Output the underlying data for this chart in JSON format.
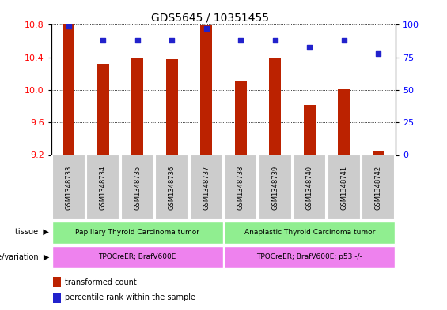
{
  "title": "GDS5645 / 10351455",
  "samples": [
    "GSM1348733",
    "GSM1348734",
    "GSM1348735",
    "GSM1348736",
    "GSM1348737",
    "GSM1348738",
    "GSM1348739",
    "GSM1348740",
    "GSM1348741",
    "GSM1348742"
  ],
  "transformed_count": [
    10.8,
    10.32,
    10.39,
    10.38,
    10.79,
    10.11,
    10.4,
    9.82,
    10.01,
    9.24
  ],
  "percentile_rank": [
    99,
    88,
    88,
    88,
    97,
    88,
    88,
    83,
    88,
    78
  ],
  "ylim_left": [
    9.2,
    10.8
  ],
  "ylim_right": [
    0,
    100
  ],
  "yticks_left": [
    9.2,
    9.6,
    10.0,
    10.4,
    10.8
  ],
  "yticks_right": [
    0,
    25,
    50,
    75,
    100
  ],
  "bar_color": "#bb2200",
  "dot_color": "#2222cc",
  "tissue_label_1": "Papillary Thyroid Carcinoma tumor",
  "tissue_label_2": "Anaplastic Thyroid Carcinoma tumor",
  "tissue_color": "#90ee90",
  "genotype_label_1": "TPOCreER; BrafV600E",
  "genotype_label_2": "TPOCreER; BrafV600E; p53 -/-",
  "genotype_color": "#ee82ee",
  "sample_box_color": "#cccccc",
  "bar_width": 0.35,
  "xlim": [
    -0.5,
    9.5
  ],
  "legend_red_label": "transformed count",
  "legend_blue_label": "percentile rank within the sample",
  "title_fontsize": 10,
  "axis_fontsize": 8,
  "sample_fontsize": 6,
  "row_fontsize": 7,
  "legend_fontsize": 7
}
